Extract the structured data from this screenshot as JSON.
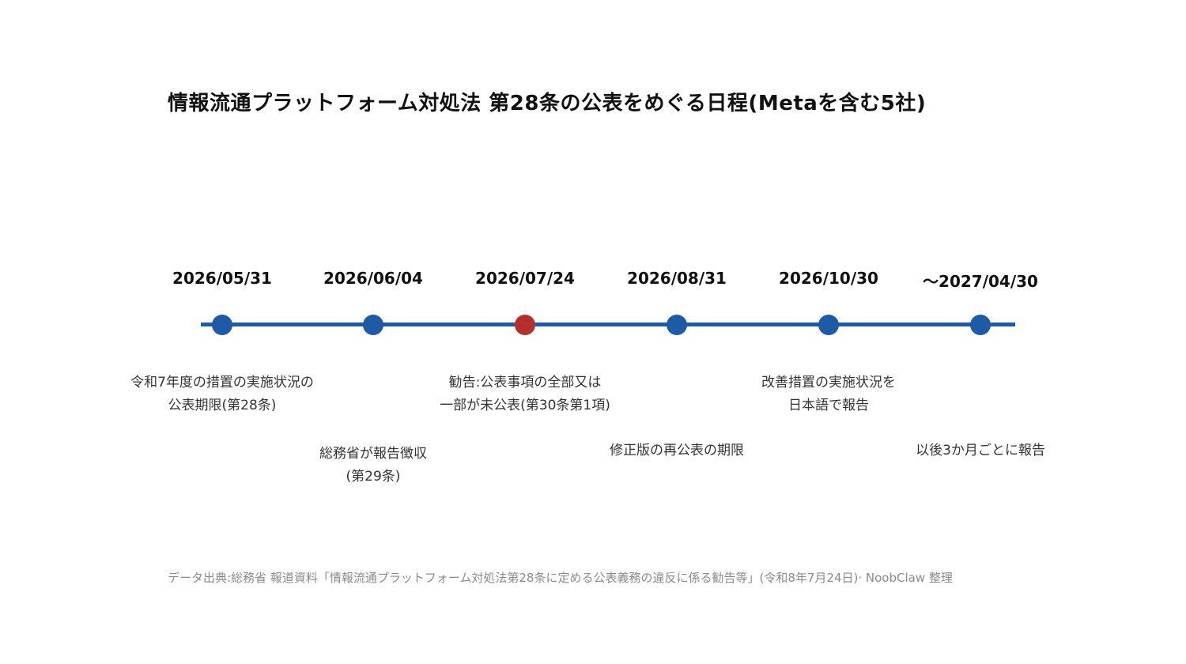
{
  "title": "情報流通プラットフォーム対処法 第28条の公表をめぐる日程(Metaを含む5社)",
  "colors": {
    "accent": "#1f5aa6",
    "highlight": "#b5302c",
    "text": "#111111",
    "muted": "#8a8a8a"
  },
  "milestones": [
    {
      "date": "2026/05/31",
      "lines": [
        "令和7年度の措置の実施状況の",
        "公表期限(第28条)"
      ],
      "highlight": false
    },
    {
      "date": "2026/06/04",
      "lines": [
        "総務省が報告徴収",
        "(第29条)"
      ],
      "highlight": false
    },
    {
      "date": "2026/07/24",
      "lines": [
        "勧告:公表事項の全部又は",
        "一部が未公表(第30条第1項)"
      ],
      "highlight": true
    },
    {
      "date": "2026/08/31",
      "lines": [
        "修正版の再公表の期限"
      ],
      "highlight": false
    },
    {
      "date": "2026/10/30",
      "lines": [
        "改善措置の実施状況を",
        "日本語で報告"
      ],
      "highlight": false
    },
    {
      "date": "〜2027/04/30",
      "lines": [
        "以後3か月ごとに報告"
      ],
      "highlight": false
    }
  ],
  "source": "データ出典:総務省 報道資料「情報流通プラットフォーム対処法第28条に定める公表義務の違反に係る勧告等」(令和8年7月24日)· NoobClaw 整理"
}
